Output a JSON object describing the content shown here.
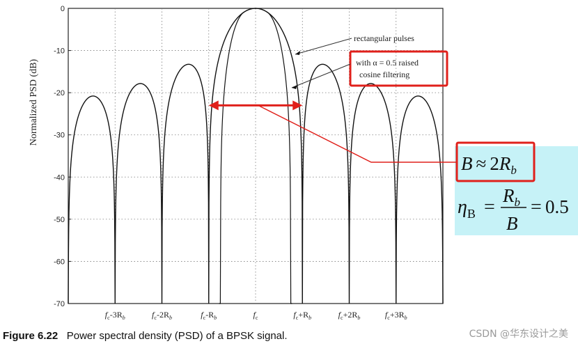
{
  "chart_data": {
    "type": "line",
    "ylabel": "Normalized PSD (dB)",
    "ylim": [
      -70,
      0
    ],
    "yticks": [
      0,
      -10,
      -20,
      -30,
      -40,
      -50,
      -60,
      -70
    ],
    "ytick_labels": [
      "0",
      "-10",
      "-20",
      "-30",
      "-40",
      "-50",
      "-60",
      "-70"
    ],
    "xlim": [
      -4,
      4
    ],
    "xunit": "R_b offset from f_c",
    "xticks": [
      -3,
      -2,
      -1,
      0,
      1,
      2,
      3
    ],
    "xtick_labels": [
      {
        "main": "f",
        "sub": "c",
        "rest": "-3R",
        "rsub": "b"
      },
      {
        "main": "f",
        "sub": "c",
        "rest": "-2R",
        "rsub": "b"
      },
      {
        "main": "f",
        "sub": "c",
        "rest": "-R",
        "rsub": "b"
      },
      {
        "main": "f",
        "sub": "c",
        "rest": "",
        "rsub": ""
      },
      {
        "main": "f",
        "sub": "c",
        "rest": "+R",
        "rsub": "b"
      },
      {
        "main": "f",
        "sub": "c",
        "rest": "+2R",
        "rsub": "b"
      },
      {
        "main": "f",
        "sub": "c",
        "rest": "+3R",
        "rsub": "b"
      }
    ],
    "grid": "dotted",
    "series": [
      {
        "name": "rectangular pulses",
        "function": "sinc^2",
        "floor_db": -70
      },
      {
        "name": "with α = 0.5 raised cosine filtering",
        "function": "raised-cosine",
        "alpha": 0.5
      }
    ],
    "legend": {
      "rect_label": "rectangular pulses",
      "rc_line1": "with α = 0.5 raised",
      "rc_line2": "cosine filtering"
    },
    "bandwidth_arrow": {
      "from": -1,
      "to": 1,
      "level_db": -23
    }
  },
  "annotations": {
    "bandwidth_eq": "B ≈ 2R_b",
    "efficiency_eq": "η_B = R_b / B = 0.5",
    "eq_B": "B",
    "eq_approx": "≈",
    "eq_two": "2",
    "eq_R": "R",
    "eq_b": "b",
    "eta": "η",
    "eta_sub": "B",
    "eq_equals": "=",
    "frac_num": "R",
    "frac_num_sub": "b",
    "frac_den": "B",
    "eq_value": "0.5"
  },
  "caption": {
    "figure": "Figure 6.22",
    "text": "Power spectral density (PSD) of a BPSK signal."
  },
  "watermark": "CSDN @华东设计之美",
  "colors": {
    "highlight": "#e0201b",
    "panel": "#c6f2f7",
    "curve": "#111111",
    "grid": "#7a7a7a"
  }
}
